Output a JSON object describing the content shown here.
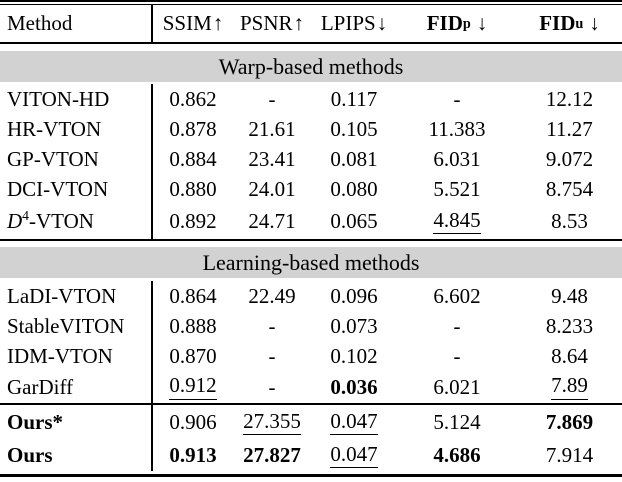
{
  "header": {
    "method_label": "Method",
    "columns": [
      {
        "label": "SSIM",
        "sub": "",
        "arrow": "↑"
      },
      {
        "label": "PSNR",
        "sub": "",
        "arrow": "↑"
      },
      {
        "label": "LPIPS",
        "sub": "",
        "arrow": "↓"
      },
      {
        "label": "FID",
        "sub": "p",
        "arrow": "↓"
      },
      {
        "label": "FID",
        "sub": "u",
        "arrow": "↓"
      }
    ]
  },
  "sections": [
    {
      "title": "Warp-based methods",
      "rows": [
        {
          "method": "VITON-HD",
          "ssim": "0.862",
          "psnr": "-",
          "lpips": "0.117",
          "fid_p": "-",
          "fid_u": "12.12"
        },
        {
          "method": "HR-VTON",
          "ssim": "0.878",
          "psnr": "21.61",
          "lpips": "0.105",
          "fid_p": "11.383",
          "fid_u": "11.27"
        },
        {
          "method": "GP-VTON",
          "ssim": "0.884",
          "psnr": "23.41",
          "lpips": "0.081",
          "fid_p": "6.031",
          "fid_u": "9.072"
        },
        {
          "method": "DCI-VTON",
          "ssim": "0.880",
          "psnr": "24.01",
          "lpips": "0.080",
          "fid_p": "5.521",
          "fid_u": "8.754"
        },
        {
          "method_parts": {
            "base": "D",
            "sup": "4",
            "rest": "-VTON"
          },
          "ssim": "0.892",
          "psnr": "24.71",
          "lpips": "0.065",
          "fid_p": "4.845",
          "fid_u": "8.53"
        }
      ]
    },
    {
      "title": "Learning-based methods",
      "rows": [
        {
          "method": "LaDI-VTON",
          "ssim": "0.864",
          "psnr": "22.49",
          "lpips": "0.096",
          "fid_p": "6.602",
          "fid_u": "9.48"
        },
        {
          "method": "StableVITON",
          "ssim": "0.888",
          "psnr": "-",
          "lpips": "0.073",
          "fid_p": "-",
          "fid_u": "8.233"
        },
        {
          "method": "IDM-VTON",
          "ssim": "0.870",
          "psnr": "-",
          "lpips": "0.102",
          "fid_p": "-",
          "fid_u": "8.64"
        },
        {
          "method": "GarDiff",
          "ssim": "0.912",
          "psnr": "-",
          "lpips": "0.036",
          "fid_p": "6.021",
          "fid_u": "7.89"
        }
      ]
    }
  ],
  "ours": {
    "rows": [
      {
        "method": "Ours*",
        "ssim": "0.906",
        "psnr": "27.355",
        "lpips": "0.047",
        "fid_p": "5.124",
        "fid_u": "7.869"
      },
      {
        "method": "Ours",
        "ssim": "0.913",
        "psnr": "27.827",
        "lpips": "0.047",
        "fid_p": "4.686",
        "fid_u": "7.914"
      }
    ]
  },
  "colors": {
    "background": "#ffffff",
    "text": "#000000",
    "section_band_bg": "#d2d2d2",
    "rule": "#000000"
  }
}
